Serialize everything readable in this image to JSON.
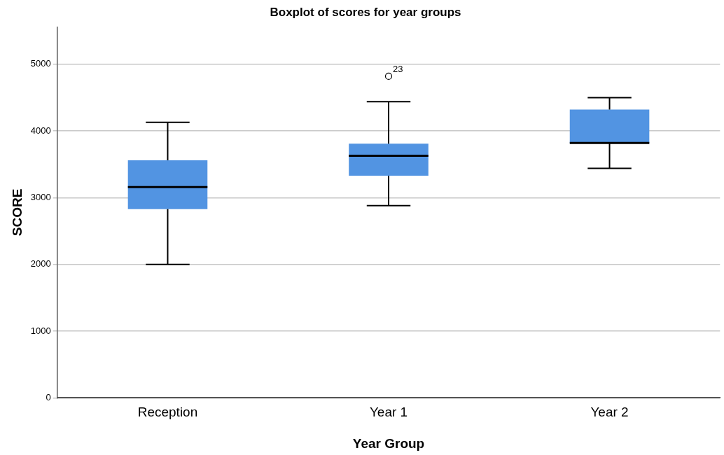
{
  "chart_data": {
    "type": "box",
    "title": "Boxplot of scores for year groups",
    "xlabel": "Year Group",
    "ylabel": "SCORE",
    "categories": [
      "Reception",
      "Year 1",
      "Year 2"
    ],
    "color": "#5294e2",
    "boxes": [
      {
        "low": 2000,
        "q1": 2830,
        "median": 3160,
        "q3": 3560,
        "high": 4130
      },
      {
        "low": 2880,
        "q1": 3330,
        "median": 3630,
        "q3": 3810,
        "high": 4440,
        "outliers": [
          4820
        ]
      },
      {
        "low": 3440,
        "q1": 3820,
        "median": 3820,
        "q3": 4320,
        "high": 4500
      }
    ],
    "ylim": [
      0,
      5560
    ],
    "yticks": [
      0,
      1000,
      2000,
      3000,
      4000,
      5000
    ],
    "grid": "y",
    "annotations": [
      "23"
    ]
  }
}
